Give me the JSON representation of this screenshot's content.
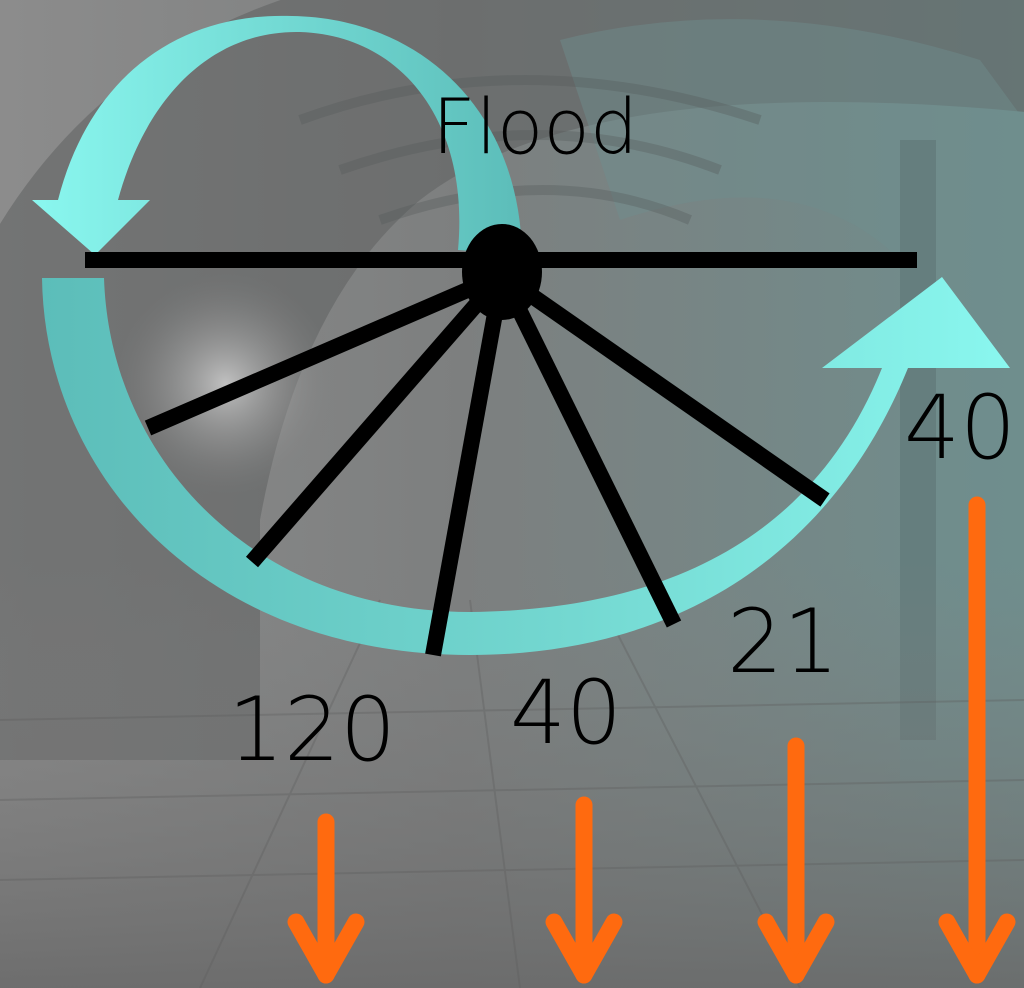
{
  "diagram": {
    "title": "Flood",
    "labels": [
      "120",
      "40",
      "21",
      "40"
    ]
  },
  "colors": {
    "cyan_bright": "#8af7ef",
    "cyan_dark": "#5cbdb9",
    "spokes": "#000000",
    "arrows": "#ff6a0f",
    "background": "#7b8483"
  }
}
